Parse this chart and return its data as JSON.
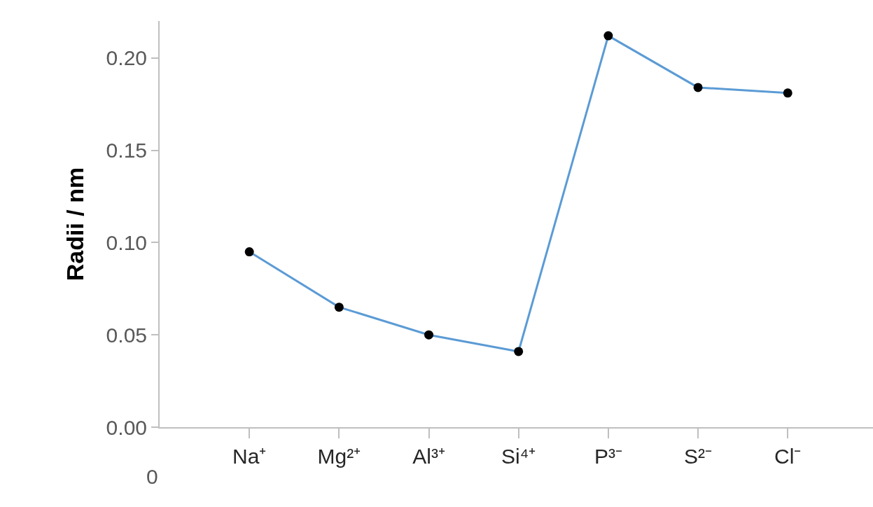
{
  "chart_data": {
    "type": "line",
    "ylabel": "Radii / nm",
    "categories": [
      "Na⁺",
      "Mg²⁺",
      "Al³⁺",
      "Si⁴⁺",
      "P³⁻",
      "S²⁻",
      "Cl⁻"
    ],
    "series": [
      {
        "color": "#5b9bd5",
        "values": [
          0.095,
          0.065,
          0.05,
          0.041,
          0.212,
          0.184,
          0.181
        ]
      }
    ],
    "ylim": [
      0,
      0.22
    ],
    "yticks": [
      {
        "value": 0,
        "label": "0.00"
      },
      {
        "value": 0.05,
        "label": "0.05"
      },
      {
        "value": 0.1,
        "label": "0.10"
      },
      {
        "value": 0.15,
        "label": "0.15"
      },
      {
        "value": 0.2,
        "label": "0.20"
      }
    ],
    "annotations": [
      "0"
    ],
    "grid": false,
    "marker": "circle",
    "line_style": "solid"
  }
}
